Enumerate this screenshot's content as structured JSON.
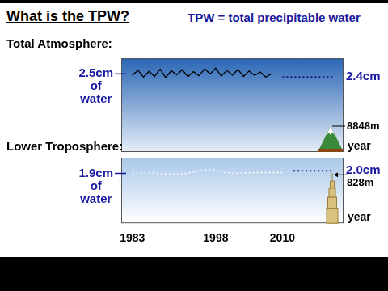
{
  "title": "What is the TPW?",
  "subtitle": "TPW = total precipitable water",
  "chart_data": [
    {
      "type": "line",
      "title": "Total Atmosphere:",
      "x_label": "year",
      "x": [
        1983,
        1984,
        1985,
        1986,
        1987,
        1988,
        1989,
        1990,
        1991,
        1992,
        1993,
        1994,
        1995,
        1996,
        1997,
        1998,
        1999,
        2000,
        2001,
        2002,
        2003,
        2004,
        2005,
        2006,
        2007,
        2008,
        2010,
        2019
      ],
      "series": [
        {
          "color": "#000000",
          "line_style": "solid",
          "values": [
            2.45,
            2.62,
            2.4,
            2.58,
            2.42,
            2.65,
            2.38,
            2.6,
            2.47,
            2.63,
            2.41,
            2.57,
            2.44,
            2.66,
            2.5,
            2.68,
            2.43,
            2.61,
            2.46,
            2.64,
            2.42,
            2.59,
            2.45,
            2.56,
            2.4,
            2.5,
            null,
            null
          ]
        },
        {
          "color": "#1a1a80",
          "line_style": "dotted",
          "values": [
            null,
            null,
            null,
            null,
            null,
            null,
            null,
            null,
            null,
            null,
            null,
            null,
            null,
            null,
            null,
            null,
            null,
            null,
            null,
            null,
            null,
            null,
            null,
            null,
            null,
            null,
            2.4,
            2.4
          ]
        }
      ],
      "xlim": [
        1981,
        2021
      ],
      "ylim": [
        0,
        3
      ],
      "tick_labels": false,
      "grid": false,
      "start_label": {
        "value": 2.5,
        "label": "2.5cm",
        "lines": [
          "of",
          "water"
        ]
      },
      "end_label": {
        "value": 2.4,
        "label": "2.4cm"
      },
      "landmark": {
        "value": 8848,
        "label": "8848m"
      }
    },
    {
      "type": "line",
      "title": "Lower Troposphere:",
      "x_label": "year",
      "x": [
        1983,
        1984,
        1985,
        1986,
        1987,
        1988,
        1989,
        1990,
        1991,
        1992,
        1993,
        1994,
        1995,
        1996,
        1997,
        1998,
        1999,
        2000,
        2001,
        2002,
        2003,
        2004,
        2005,
        2006,
        2007,
        2008,
        2009,
        2010,
        2012,
        2019
      ],
      "series": [
        {
          "color": "#f2f7fd",
          "line_style": "dotted",
          "values": [
            1.9,
            1.91,
            1.92,
            1.92,
            1.91,
            1.89,
            1.87,
            1.86,
            1.86,
            1.88,
            1.91,
            1.95,
            1.99,
            2.03,
            2.05,
            2.04,
            1.97,
            1.92,
            1.91,
            1.91,
            1.92,
            1.92,
            1.92,
            1.93,
            1.93,
            1.93,
            1.93,
            1.93,
            null,
            null
          ]
        },
        {
          "color": "#1a1a80",
          "line_style": "dotted",
          "values": [
            null,
            null,
            null,
            null,
            null,
            null,
            null,
            null,
            null,
            null,
            null,
            null,
            null,
            null,
            null,
            null,
            null,
            null,
            null,
            null,
            null,
            null,
            null,
            null,
            null,
            null,
            null,
            null,
            2.0,
            2.0
          ]
        }
      ],
      "xlim": [
        1981,
        2021
      ],
      "xticks": [
        1983,
        1998,
        2010
      ],
      "ylim": [
        0,
        2.5
      ],
      "tick_labels": "x",
      "grid": false,
      "start_label": {
        "value": 1.9,
        "label": "1.9cm",
        "lines": [
          "of",
          "water"
        ]
      },
      "end_label": {
        "value": 2.0,
        "label": "2.0cm"
      },
      "landmark": {
        "value": 828,
        "label": "828m"
      }
    }
  ]
}
